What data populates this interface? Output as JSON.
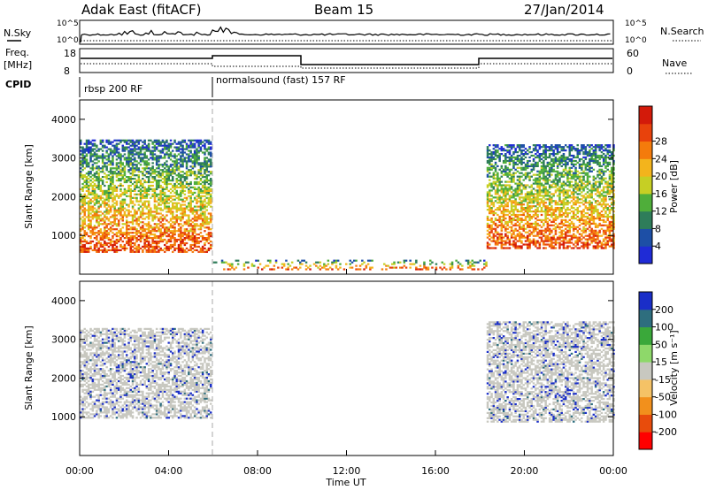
{
  "header": {
    "title": "Adak East (fitACF)",
    "beam": "Beam 15",
    "date": "27/Jan/2014"
  },
  "panels": {
    "nsky": {
      "label": "N.Sky",
      "right_label": "N.Search",
      "ticks": [
        "10^5",
        "10^0"
      ]
    },
    "freq": {
      "label": "Freq.",
      "unit": "[MHz]",
      "ticks": [
        "18",
        "8"
      ],
      "right_ticks": [
        "60",
        "0"
      ],
      "right_label": "Nave"
    },
    "cpid": {
      "label": "CPID",
      "programs": [
        "rbsp 200 RF",
        "normalsound (fast) 157 RF"
      ]
    }
  },
  "chart_data": [
    {
      "type": "heatmap",
      "title": "",
      "xlabel": "Time UT",
      "ylabel": "Slant Range [km]",
      "xlim": [
        "00:00",
        "24:00"
      ],
      "ylim": [
        0,
        4500
      ],
      "x_ticks": [
        "00:00",
        "04:00",
        "08:00",
        "12:00",
        "16:00",
        "20:00",
        "00:00"
      ],
      "y_ticks": [
        "1000",
        "2000",
        "3000",
        "4000"
      ],
      "colorbar": {
        "label": "Power [dB]",
        "ticks": [
          "4",
          "8",
          "12",
          "16",
          "20",
          "24",
          "28"
        ],
        "range": [
          0,
          30
        ],
        "colors": [
          "#1f2bd6",
          "#1d4fa6",
          "#2e7d5a",
          "#4fae3a",
          "#c6cf24",
          "#f3b41c",
          "#f47b0c",
          "#e8420c",
          "#d31a0a"
        ]
      },
      "echo_regions": [
        {
          "name": "morning backscatter",
          "time_start": 0.0,
          "time_end": 5.9,
          "range_start": 600,
          "range_end": 3500
        },
        {
          "name": "evening backscatter",
          "time_start": 18.3,
          "time_end": 24.0,
          "range_start": 700,
          "range_end": 3400
        },
        {
          "name": "near-range echoes",
          "time_start": 6.0,
          "time_end": 18.3,
          "range_start": 150,
          "range_end": 400
        }
      ]
    },
    {
      "type": "heatmap",
      "title": "",
      "xlabel": "Time UT",
      "ylabel": "Slant Range [km]",
      "xlim": [
        "00:00",
        "24:00"
      ],
      "ylim": [
        0,
        4500
      ],
      "x_ticks": [
        "00:00",
        "04:00",
        "08:00",
        "12:00",
        "16:00",
        "20:00",
        "00:00"
      ],
      "y_ticks": [
        "1000",
        "2000",
        "3000",
        "4000"
      ],
      "colorbar": {
        "label": "Velocity [m s⁻¹]",
        "ticks": [
          "200",
          "100",
          "50",
          "15",
          "-15",
          "-50",
          "-100",
          "-200"
        ],
        "range": [
          -250,
          250
        ],
        "colors": [
          "#ff0000",
          "#e84c0c",
          "#f2901c",
          "#f5c266",
          "#c8c8c0",
          "#8ed86a",
          "#3aa83a",
          "#2e6e7e",
          "#1a2ec8"
        ]
      },
      "echo_regions": [
        {
          "name": "morning ground scatter",
          "time_start": 0.0,
          "time_end": 5.9,
          "range_start": 1000,
          "range_end": 3300
        },
        {
          "name": "evening ground scatter",
          "time_start": 18.3,
          "time_end": 24.0,
          "range_start": 900,
          "range_end": 3500
        }
      ]
    }
  ]
}
